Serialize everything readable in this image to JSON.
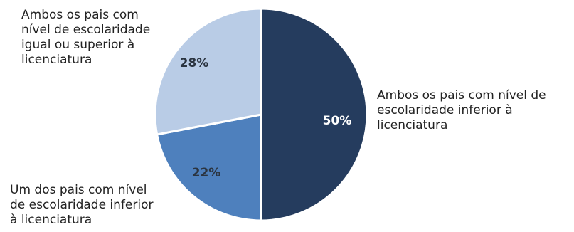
{
  "chart_data": {
    "type": "pie",
    "slices": [
      {
        "label": "Ambos os pais com nível de escolaridade inferior à licenciatura",
        "label_lines": [
          "Ambos os pais com nível de",
          "escolaridade inferior à",
          "licenciatura"
        ],
        "value": 50,
        "value_label": "50%",
        "color": "#253c5e",
        "text_color": "#ffffff"
      },
      {
        "label": "Um dos pais com nível de escolaridade inferior à licenciatura",
        "label_lines": [
          "Um dos pais com nível",
          "de escolaridade inferior",
          "à licenciatura"
        ],
        "value": 22,
        "value_label": "22%",
        "color": "#4e80bd",
        "text_color": "#2b3440"
      },
      {
        "label": "Ambos os pais com nível de escolaridade igual ou superior à licenciatura",
        "label_lines": [
          "Ambos os pais com",
          "nível de escolaridade",
          "igual ou superior à",
          "licenciatura"
        ],
        "value": 28,
        "value_label": "28%",
        "color": "#b9cce6",
        "text_color": "#2b3440"
      }
    ],
    "start": "12 o'clock",
    "direction": "clockwise",
    "legend": "none"
  }
}
